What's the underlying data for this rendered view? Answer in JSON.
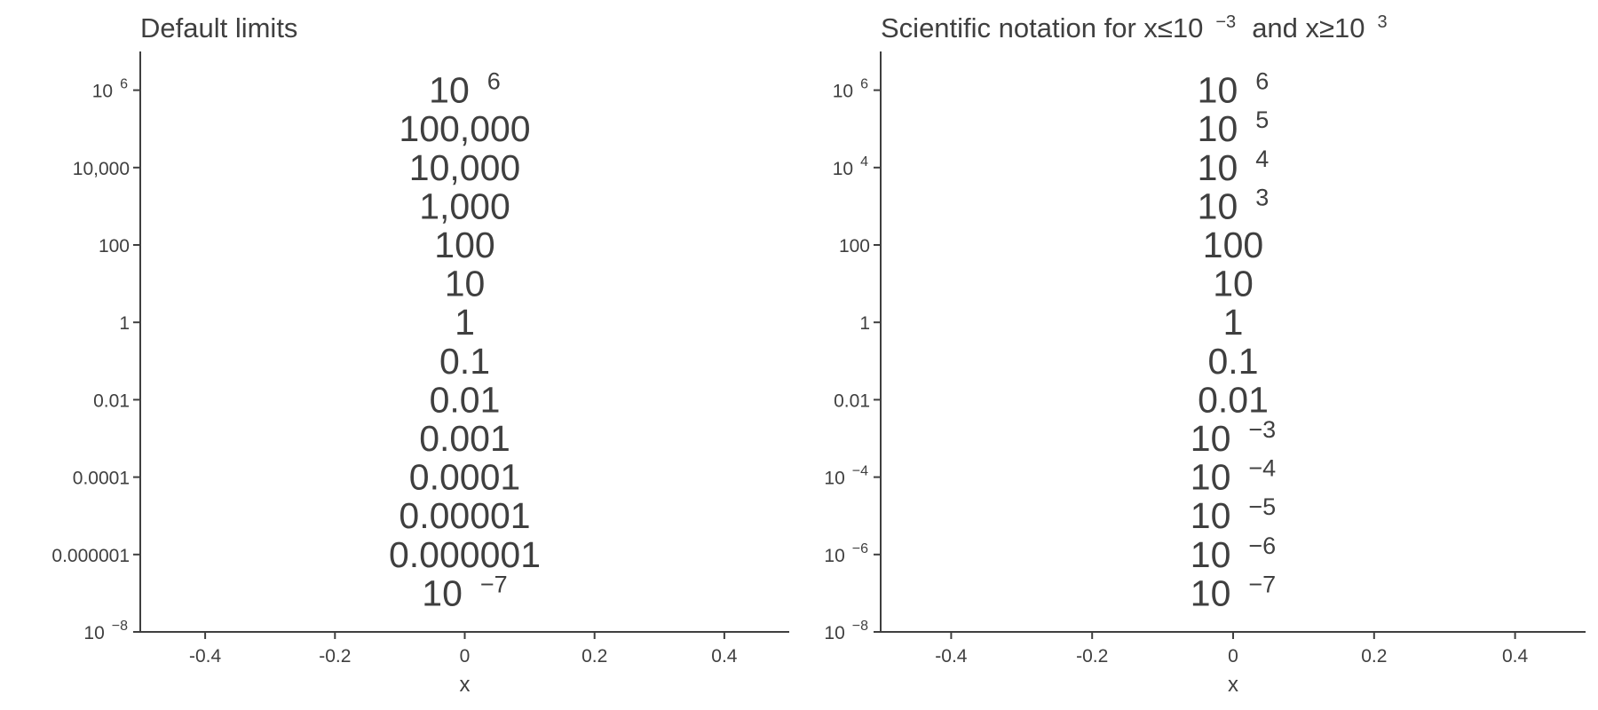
{
  "chart_data": [
    {
      "type": "scatter",
      "title": "Default limits",
      "xlabel": "x",
      "ylabel": "",
      "xlim": [
        -0.5,
        0.5
      ],
      "ylim": [
        1e-08,
        10000000.0
      ],
      "yscale": "log",
      "grid": false,
      "x_ticks": [
        {
          "value": -0.4,
          "label": "-0.4"
        },
        {
          "value": -0.2,
          "label": "-0.2"
        },
        {
          "value": 0,
          "label": "0"
        },
        {
          "value": 0.2,
          "label": "0.2"
        },
        {
          "value": 0.4,
          "label": "0.4"
        }
      ],
      "y_ticks": [
        {
          "value": 1000000.0,
          "label": "10",
          "sup": "6"
        },
        {
          "value": 10000.0,
          "label": "10,000"
        },
        {
          "value": 100,
          "label": "100"
        },
        {
          "value": 1,
          "label": "1"
        },
        {
          "value": 0.01,
          "label": "0.01"
        },
        {
          "value": 0.0001,
          "label": "0.0001"
        },
        {
          "value": 1e-06,
          "label": "0.000001"
        },
        {
          "value": 1e-08,
          "label": "10",
          "sup": "−8"
        }
      ],
      "points": [
        {
          "x": 0,
          "y": 1000000.0,
          "label": "10",
          "sup": "6"
        },
        {
          "x": 0,
          "y": 100000.0,
          "label": "100,000"
        },
        {
          "x": 0,
          "y": 10000.0,
          "label": "10,000"
        },
        {
          "x": 0,
          "y": 1000.0,
          "label": "1,000"
        },
        {
          "x": 0,
          "y": 100,
          "label": "100"
        },
        {
          "x": 0,
          "y": 10,
          "label": "10"
        },
        {
          "x": 0,
          "y": 1,
          "label": "1"
        },
        {
          "x": 0,
          "y": 0.1,
          "label": "0.1"
        },
        {
          "x": 0,
          "y": 0.01,
          "label": "0.01"
        },
        {
          "x": 0,
          "y": 0.001,
          "label": "0.001"
        },
        {
          "x": 0,
          "y": 0.0001,
          "label": "0.0001"
        },
        {
          "x": 0,
          "y": 1e-05,
          "label": "0.00001"
        },
        {
          "x": 0,
          "y": 1e-06,
          "label": "0.000001"
        },
        {
          "x": 0,
          "y": 1e-07,
          "label": "10",
          "sup": "−7"
        }
      ]
    },
    {
      "type": "scatter",
      "title": "Scientific notation for x≤10",
      "title_parts": [
        {
          "text": "Scientific notation for x≤10"
        },
        {
          "text": "−3",
          "sup": true
        },
        {
          "text": "and x≥10"
        },
        {
          "text": "3",
          "sup": true
        }
      ],
      "xlabel": "x",
      "ylabel": "",
      "xlim": [
        -0.5,
        0.5
      ],
      "ylim": [
        1e-08,
        10000000.0
      ],
      "yscale": "log",
      "grid": false,
      "x_ticks": [
        {
          "value": -0.4,
          "label": "-0.4"
        },
        {
          "value": -0.2,
          "label": "-0.2"
        },
        {
          "value": 0,
          "label": "0"
        },
        {
          "value": 0.2,
          "label": "0.2"
        },
        {
          "value": 0.4,
          "label": "0.4"
        }
      ],
      "y_ticks": [
        {
          "value": 1000000.0,
          "label": "10",
          "sup": "6"
        },
        {
          "value": 10000.0,
          "label": "10",
          "sup": "4"
        },
        {
          "value": 100,
          "label": "100"
        },
        {
          "value": 1,
          "label": "1"
        },
        {
          "value": 0.01,
          "label": "0.01"
        },
        {
          "value": 0.0001,
          "label": "10",
          "sup": "−4"
        },
        {
          "value": 1e-06,
          "label": "10",
          "sup": "−6"
        },
        {
          "value": 1e-08,
          "label": "10",
          "sup": "−8"
        }
      ],
      "points": [
        {
          "x": 0,
          "y": 1000000.0,
          "label": "10",
          "sup": "6"
        },
        {
          "x": 0,
          "y": 100000.0,
          "label": "10",
          "sup": "5"
        },
        {
          "x": 0,
          "y": 10000.0,
          "label": "10",
          "sup": "4"
        },
        {
          "x": 0,
          "y": 1000.0,
          "label": "10",
          "sup": "3"
        },
        {
          "x": 0,
          "y": 100,
          "label": "100"
        },
        {
          "x": 0,
          "y": 10,
          "label": "10"
        },
        {
          "x": 0,
          "y": 1,
          "label": "1"
        },
        {
          "x": 0,
          "y": 0.1,
          "label": "0.1"
        },
        {
          "x": 0,
          "y": 0.01,
          "label": "0.01"
        },
        {
          "x": 0,
          "y": 0.001,
          "label": "10",
          "sup": "−3"
        },
        {
          "x": 0,
          "y": 0.0001,
          "label": "10",
          "sup": "−4"
        },
        {
          "x": 0,
          "y": 1e-05,
          "label": "10",
          "sup": "−5"
        },
        {
          "x": 0,
          "y": 1e-06,
          "label": "10",
          "sup": "−6"
        },
        {
          "x": 0,
          "y": 1e-07,
          "label": "10",
          "sup": "−7"
        }
      ]
    }
  ]
}
